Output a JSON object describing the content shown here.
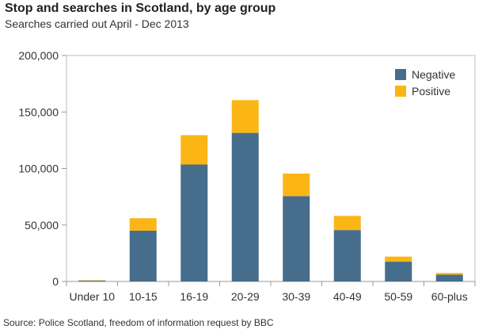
{
  "title": "Stop and searches in Scotland, by age group",
  "subtitle": "Searches carried out April - Dec 2013",
  "source": "Source: Police Scotland, freedom of information request by BBC",
  "colors": {
    "negative": "#466d8c",
    "positive": "#fbb515",
    "axis": "#999999",
    "plot_border": "#bbbbbb"
  },
  "chart_data": {
    "type": "bar",
    "stacked": true,
    "title": "Stop and searches in Scotland, by age group",
    "subtitle": "Searches carried out April - Dec 2013",
    "xlabel": "",
    "ylabel": "",
    "categories": [
      "Under 10",
      "10-15",
      "16-19",
      "20-29",
      "30-39",
      "40-49",
      "50-59",
      "60-plus"
    ],
    "series": [
      {
        "name": "Negative",
        "color": "#466d8c",
        "values": [
          800,
          45000,
          103500,
          131500,
          75500,
          45500,
          17500,
          6000
        ]
      },
      {
        "name": "Positive",
        "color": "#fbb515",
        "values": [
          300,
          11000,
          26000,
          29000,
          20000,
          12500,
          4500,
          1500
        ]
      }
    ],
    "ylim": [
      0,
      200000
    ],
    "yticks": [
      0,
      50000,
      100000,
      150000,
      200000
    ],
    "ytick_labels": [
      "0",
      "50,000",
      "100,000",
      "150,000",
      "200,000"
    ],
    "grid": false,
    "legend": {
      "placement": "top-right",
      "entries": [
        "Negative",
        "Positive"
      ]
    }
  }
}
